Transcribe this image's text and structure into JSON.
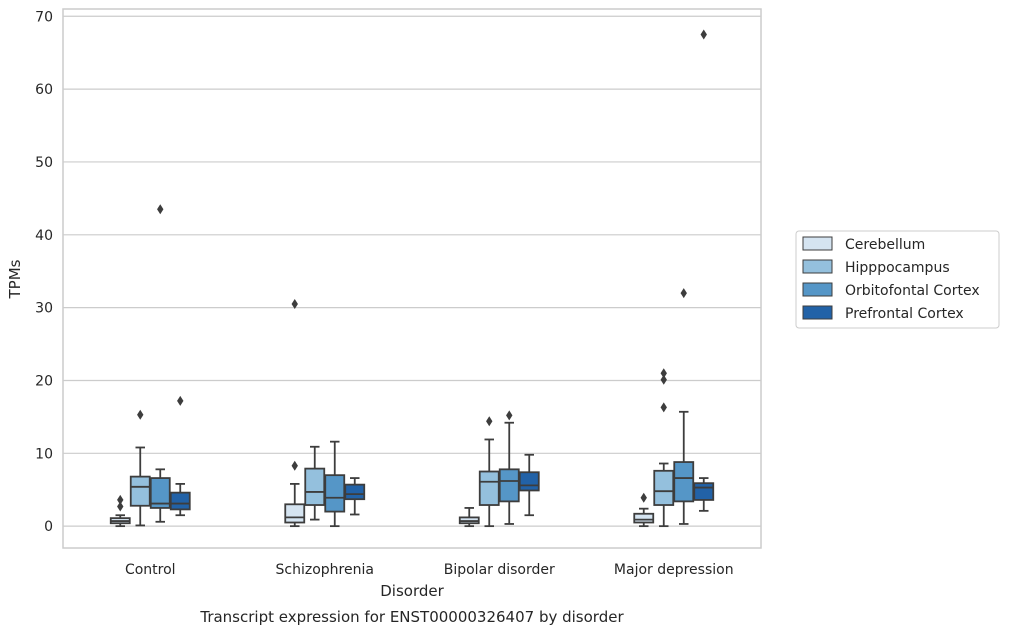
{
  "caption": "Transcript expression for ENST00000326407 by disorder",
  "colors": {
    "Cerebellum": "#d5e4f1",
    "Hipppocampus": "#94c0dd",
    "Orbitofontal Cortex": "#5596c7",
    "Prefrontal Cortex": "#2262a7",
    "edge": "#3d3d3d",
    "grid": "#cccccc"
  },
  "chart_data": {
    "type": "box",
    "title": "",
    "xlabel": "Disorder",
    "ylabel": "TPMs",
    "ylim": [
      -3,
      71
    ],
    "yticks": [
      0,
      10,
      20,
      30,
      40,
      50,
      60,
      70
    ],
    "grid": "horizontal",
    "legend_placement": "right",
    "categories": [
      "Control",
      "Schizophrenia",
      "Bipolar disorder",
      "Major depression"
    ],
    "series": [
      {
        "name": "Cerebellum",
        "boxes": [
          {
            "whisker_low": 0.0,
            "q1": 0.4,
            "median": 0.7,
            "q3": 1.1,
            "whisker_high": 1.5,
            "outliers": [
              2.7,
              3.6
            ]
          },
          {
            "whisker_low": 0.0,
            "q1": 0.5,
            "median": 1.2,
            "q3": 3.0,
            "whisker_high": 5.8,
            "outliers": [
              8.3,
              30.5
            ]
          },
          {
            "whisker_low": 0.0,
            "q1": 0.4,
            "median": 0.7,
            "q3": 1.2,
            "whisker_high": 2.5,
            "outliers": []
          },
          {
            "whisker_low": 0.0,
            "q1": 0.5,
            "median": 0.9,
            "q3": 1.7,
            "whisker_high": 2.4,
            "outliers": [
              3.9
            ]
          }
        ]
      },
      {
        "name": "Hipppocampus",
        "boxes": [
          {
            "whisker_low": 0.1,
            "q1": 2.8,
            "median": 5.4,
            "q3": 6.8,
            "whisker_high": 10.8,
            "outliers": [
              15.3
            ]
          },
          {
            "whisker_low": 0.9,
            "q1": 2.9,
            "median": 4.7,
            "q3": 7.9,
            "whisker_high": 10.9,
            "outliers": []
          },
          {
            "whisker_low": 0.0,
            "q1": 2.9,
            "median": 6.1,
            "q3": 7.5,
            "whisker_high": 11.9,
            "outliers": [
              14.4
            ]
          },
          {
            "whisker_low": 0.0,
            "q1": 2.9,
            "median": 4.8,
            "q3": 7.6,
            "whisker_high": 8.6,
            "outliers": [
              16.3,
              20.1,
              21.0
            ]
          }
        ]
      },
      {
        "name": "Orbitofontal Cortex",
        "boxes": [
          {
            "whisker_low": 0.6,
            "q1": 2.5,
            "median": 3.1,
            "q3": 6.6,
            "whisker_high": 7.8,
            "outliers": [
              43.5
            ]
          },
          {
            "whisker_low": 0.0,
            "q1": 2.0,
            "median": 3.9,
            "q3": 7.0,
            "whisker_high": 11.6,
            "outliers": []
          },
          {
            "whisker_low": 0.3,
            "q1": 3.4,
            "median": 6.2,
            "q3": 7.8,
            "whisker_high": 14.2,
            "outliers": [
              15.2
            ]
          },
          {
            "whisker_low": 0.3,
            "q1": 3.4,
            "median": 6.6,
            "q3": 8.8,
            "whisker_high": 15.7,
            "outliers": [
              32.0
            ]
          }
        ]
      },
      {
        "name": "Prefrontal Cortex",
        "boxes": [
          {
            "whisker_low": 1.5,
            "q1": 2.3,
            "median": 3.1,
            "q3": 4.6,
            "whisker_high": 5.8,
            "outliers": [
              17.2
            ]
          },
          {
            "whisker_low": 1.6,
            "q1": 3.7,
            "median": 4.4,
            "q3": 5.7,
            "whisker_high": 6.6,
            "outliers": []
          },
          {
            "whisker_low": 1.5,
            "q1": 4.9,
            "median": 5.6,
            "q3": 7.4,
            "whisker_high": 9.8,
            "outliers": []
          },
          {
            "whisker_low": 2.1,
            "q1": 3.6,
            "median": 5.3,
            "q3": 5.9,
            "whisker_high": 6.6,
            "outliers": [
              67.5
            ]
          }
        ]
      }
    ]
  }
}
